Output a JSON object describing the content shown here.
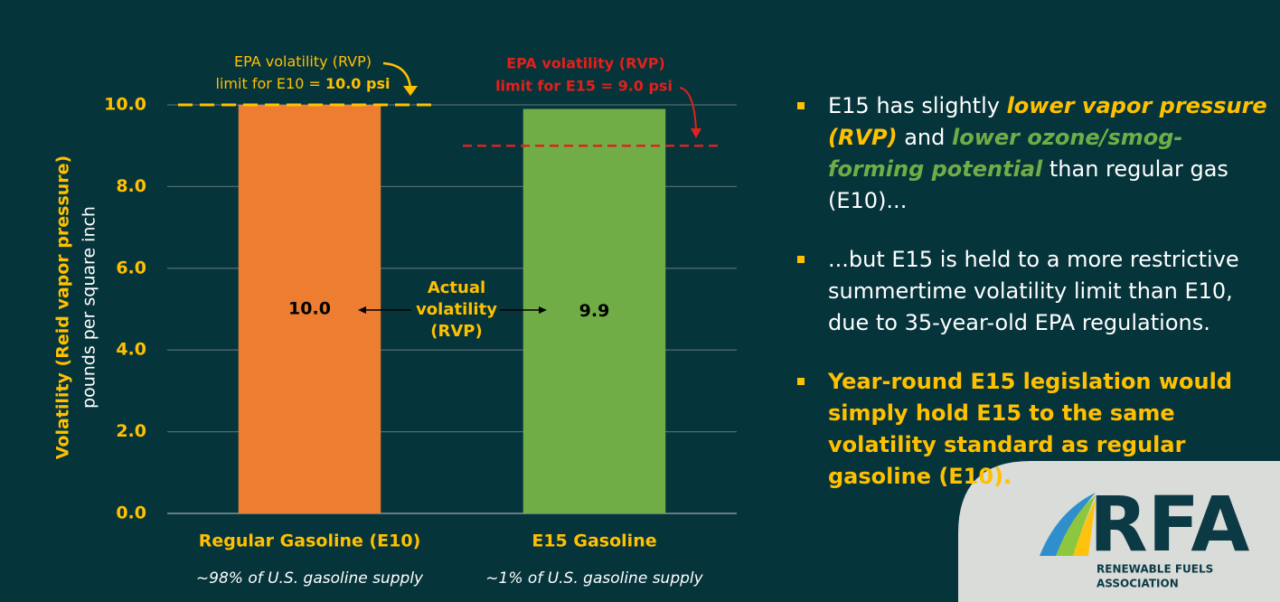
{
  "chart_data": {
    "type": "bar",
    "y_label": "Volatility (Reid vapor pressure)",
    "y_sublabel": "pounds per square inch",
    "categories": [
      "Regular Gasoline (E10)",
      "E15 Gasoline"
    ],
    "category_notes": [
      "~98% of U.S. gasoline supply",
      "~1% of U.S. gasoline supply"
    ],
    "values": [
      10.0,
      9.9
    ],
    "value_labels": [
      "10.0",
      "9.9"
    ],
    "colors": [
      "#ed7d31",
      "#70ad47"
    ],
    "ylim": [
      0,
      10
    ],
    "yticks": [
      {
        "value": 0,
        "label": "0.0"
      },
      {
        "value": 2,
        "label": "2.0"
      },
      {
        "value": 4,
        "label": "4.0"
      },
      {
        "value": 6,
        "label": "6.0"
      },
      {
        "value": 8,
        "label": "8.0"
      },
      {
        "value": 10,
        "label": "10.0"
      }
    ],
    "grid": true,
    "reference_lines": [
      {
        "value": 10,
        "color": "#ffc000",
        "label": [
          "EPA volatility (RVP)",
          "limit for E10 = ",
          "10.0 psi"
        ]
      },
      {
        "value": 9,
        "color": "#e3201b",
        "label": [
          "EPA volatility (RVP)",
          "limit for E15 = 9.0 psi"
        ]
      }
    ],
    "center_annotation": [
      "Actual",
      "volatility",
      "(RVP)"
    ]
  },
  "bullets": [
    [
      {
        "text": "E15 has slightly ",
        "style": "plain"
      },
      {
        "text": "lower vapor pressure (RVP)",
        "style": "yellow-bold-italic"
      },
      {
        "text": " and ",
        "style": "plain"
      },
      {
        "text": "lower ozone/smog-forming potential",
        "style": "green-bold-italic"
      },
      {
        "text": " than regular gas (E10)...",
        "style": "plain"
      }
    ],
    [
      {
        "text": "...but E15 is held to a more restrictive summertime volatility limit than E10, due to 35-year-old EPA regulations.",
        "style": "plain"
      }
    ],
    [
      {
        "text": "Year-round E15 legislation would simply hold E15 to the same volatility standard as regular gasoline (E10).",
        "style": "yellow-bold"
      }
    ]
  ],
  "logo": {
    "name": "RFA",
    "line1": "RENEWABLE FUELS",
    "line2": "ASSOCIATION"
  }
}
